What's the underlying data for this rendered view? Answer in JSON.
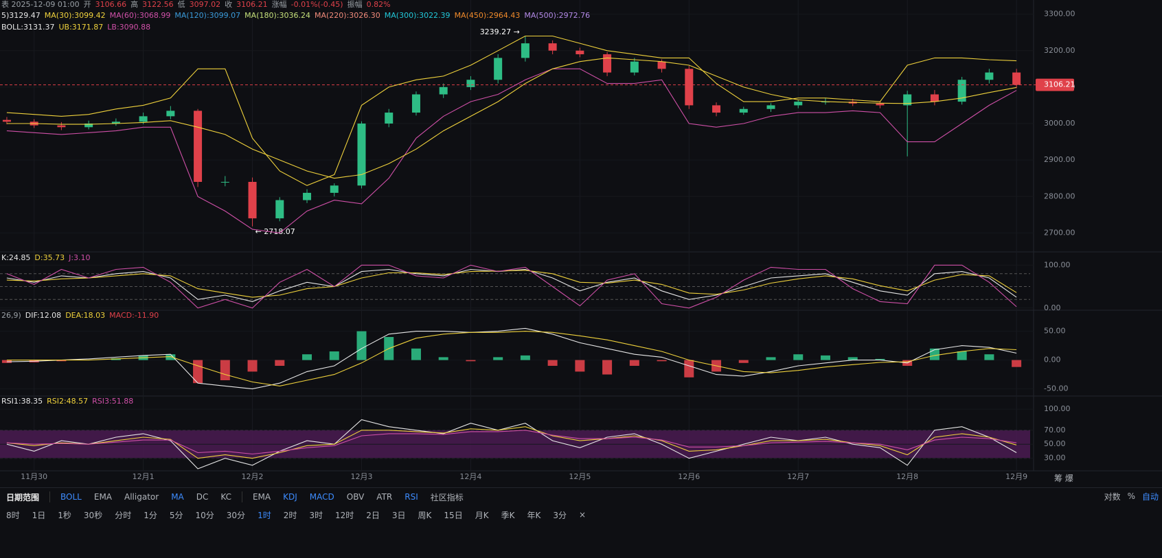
{
  "chart_data": [
    {
      "type": "candlestick",
      "header": [
        {
          "label": "表 2025-12-09 01:00",
          "color": "#9aa0a6"
        },
        {
          "label": "开",
          "color": "#9aa0a6"
        },
        {
          "label": "3106.66",
          "color": "#e0414a"
        },
        {
          "label": "高",
          "color": "#9aa0a6"
        },
        {
          "label": "3122.56",
          "color": "#e0414a"
        },
        {
          "label": "低",
          "color": "#9aa0a6"
        },
        {
          "label": "3097.02",
          "color": "#e0414a"
        },
        {
          "label": "收",
          "color": "#9aa0a6"
        },
        {
          "label": "3106.21",
          "color": "#e0414a"
        },
        {
          "label": "涨幅",
          "color": "#9aa0a6"
        },
        {
          "label": "-0.01%(-0.45)",
          "color": "#e0414a"
        },
        {
          "label": "振幅",
          "color": "#9aa0a6"
        },
        {
          "label": "0.82%",
          "color": "#e0414a"
        }
      ],
      "legend": [
        {
          "label": "5)3129.47",
          "color": "#e8e8e8"
        },
        {
          "label": "MA(30):3099.42",
          "color": "#f0d23c"
        },
        {
          "label": "MA(60):3068.99",
          "color": "#d050a8"
        },
        {
          "label": "MA(120):3099.07",
          "color": "#3a9ad9"
        },
        {
          "label": "MA(180):3036.24",
          "color": "#c5e07a"
        },
        {
          "label": "MA(220):3026.30",
          "color": "#f08a7a"
        },
        {
          "label": "MA(300):3022.39",
          "color": "#21c7d8"
        },
        {
          "label": "MA(450):2964.43",
          "color": "#f08a2a"
        },
        {
          "label": "MA(500):2972.76",
          "color": "#b48ae8"
        }
      ],
      "legend2": [
        {
          "label": "BOLL:3131.37",
          "color": "#e8e8e8"
        },
        {
          "label": "UB:3171.87",
          "color": "#f0d23c"
        },
        {
          "label": "LB:3090.88",
          "color": "#d050a8"
        }
      ],
      "up_color": "#2ebd85",
      "down_color": "#e0414a",
      "open": [
        3010,
        3005,
        2995,
        2990,
        3000,
        3005,
        3020,
        3035,
        2840,
        2840,
        2740,
        2790,
        2810,
        2830,
        3000,
        3030,
        3080,
        3100,
        3120,
        3180,
        3220,
        3200,
        3190,
        3140,
        3170,
        3150,
        3050,
        3030,
        3040,
        3050,
        3060,
        3060,
        3055,
        3050,
        3080,
        3060,
        3120,
        3140
      ],
      "high": [
        3018,
        3012,
        3004,
        3008,
        3014,
        3030,
        3048,
        3040,
        2856,
        2852,
        2798,
        2820,
        2836,
        3006,
        3040,
        3088,
        3110,
        3130,
        3190,
        3239,
        3228,
        3208,
        3196,
        3180,
        3176,
        3158,
        3058,
        3046,
        3056,
        3066,
        3070,
        3068,
        3062,
        3090,
        3092,
        3128,
        3150,
        3150
      ],
      "low": [
        2998,
        2988,
        2982,
        2984,
        2994,
        2998,
        3012,
        2826,
        2828,
        2718,
        2732,
        2782,
        2800,
        2822,
        2990,
        3022,
        3070,
        3092,
        3110,
        3170,
        3190,
        3182,
        3130,
        3132,
        3140,
        3040,
        3020,
        3024,
        3032,
        3042,
        3052,
        3048,
        3042,
        2910,
        3050,
        3052,
        3110,
        3097
      ],
      "close": [
        3005,
        2995,
        2990,
        3000,
        3005,
        3020,
        3035,
        2840,
        2840,
        2740,
        2790,
        2810,
        2830,
        3000,
        3030,
        3080,
        3100,
        3120,
        3180,
        3220,
        3200,
        3190,
        3140,
        3170,
        3150,
        3050,
        3030,
        3040,
        3050,
        3060,
        3060,
        3055,
        3050,
        3080,
        3060,
        3120,
        3140,
        3106
      ],
      "lines": [
        {
          "color": "#f0d23c",
          "values": [
            3030,
            3025,
            3020,
            3025,
            3040,
            3050,
            3070,
            3150,
            3150,
            2960,
            2870,
            2830,
            2860,
            3050,
            3100,
            3120,
            3130,
            3160,
            3200,
            3240,
            3240,
            3220,
            3200,
            3190,
            3180,
            3180,
            3110,
            3060,
            3060,
            3070,
            3070,
            3065,
            3060,
            3160,
            3180,
            3180,
            3175,
            3172
          ]
        },
        {
          "color": "#d050a8",
          "values": [
            2980,
            2975,
            2970,
            2975,
            2980,
            2990,
            2990,
            2800,
            2760,
            2710,
            2700,
            2760,
            2790,
            2780,
            2850,
            2960,
            3020,
            3060,
            3080,
            3120,
            3150,
            3150,
            3110,
            3110,
            3120,
            3000,
            2990,
            3000,
            3020,
            3030,
            3030,
            3035,
            3030,
            2950,
            2950,
            3000,
            3050,
            3091
          ]
        },
        {
          "color": "#f0d23c",
          "values": [
            3000,
            3000,
            2998,
            2998,
            3000,
            3003,
            3008,
            2990,
            2970,
            2930,
            2900,
            2870,
            2850,
            2860,
            2890,
            2930,
            2980,
            3020,
            3060,
            3110,
            3150,
            3170,
            3180,
            3175,
            3170,
            3160,
            3130,
            3100,
            3080,
            3065,
            3060,
            3058,
            3056,
            3055,
            3060,
            3070,
            3085,
            3099
          ]
        }
      ],
      "annotations": [
        {
          "text": "3239.27 →",
          "index": 19
        },
        {
          "text": "← 2718.07",
          "index": 9
        }
      ],
      "last": {
        "value": 3106.21,
        "label": "3106.21"
      },
      "ylim": [
        2680,
        3320
      ],
      "yticks": [
        {
          "value": 2700,
          "label": "2700.00"
        },
        {
          "value": 2800,
          "label": "2800.00"
        },
        {
          "value": 2900,
          "label": "2900.00"
        },
        {
          "value": 3000,
          "label": "3000.00"
        },
        {
          "value": 3100,
          "label": "3100.00"
        },
        {
          "value": 3200,
          "label": "3200.00"
        },
        {
          "value": 3300,
          "label": "3300.00"
        }
      ],
      "xlim": [
        -0.25,
        37.5
      ]
    },
    {
      "type": "line",
      "legend": [
        {
          "label": "K:24.85",
          "color": "#e8e8e8"
        },
        {
          "label": "D:35.73",
          "color": "#f0d23c"
        },
        {
          "label": "J:3.10",
          "color": "#d050a8"
        }
      ],
      "lines": [
        {
          "color": "#e8e8e8",
          "values": [
            70,
            60,
            75,
            70,
            80,
            85,
            70,
            20,
            30,
            15,
            40,
            60,
            50,
            85,
            90,
            80,
            75,
            90,
            85,
            90,
            70,
            40,
            60,
            70,
            40,
            20,
            30,
            50,
            70,
            75,
            80,
            60,
            40,
            30,
            80,
            85,
            70,
            25
          ]
        },
        {
          "color": "#f0d23c",
          "values": [
            65,
            63,
            68,
            70,
            75,
            80,
            75,
            45,
            35,
            25,
            30,
            45,
            50,
            70,
            82,
            82,
            78,
            85,
            86,
            88,
            80,
            60,
            58,
            65,
            55,
            35,
            32,
            42,
            58,
            68,
            75,
            68,
            52,
            40,
            65,
            78,
            75,
            36
          ]
        },
        {
          "color": "#d050a8",
          "values": [
            80,
            55,
            90,
            70,
            90,
            95,
            60,
            0,
            20,
            0,
            60,
            90,
            50,
            100,
            100,
            75,
            70,
            100,
            85,
            95,
            50,
            5,
            65,
            80,
            10,
            0,
            25,
            65,
            95,
            90,
            90,
            45,
            15,
            10,
            100,
            100,
            60,
            3
          ]
        }
      ],
      "guides": [
        20,
        50,
        80
      ],
      "ylim": [
        -2,
        110
      ],
      "yticks": [
        {
          "value": 0,
          "label": "0.00"
        },
        {
          "value": 100,
          "label": "100.00"
        }
      ],
      "xlim": [
        -0.25,
        37.5
      ]
    },
    {
      "type": "macd",
      "legend": [
        {
          "label": "26,9)",
          "color": "#9aa0a6"
        },
        {
          "label": "DIF:12.08",
          "color": "#e8e8e8"
        },
        {
          "label": "DEA:18.03",
          "color": "#f0d23c"
        },
        {
          "label": "MACD:-11.90",
          "color": "#e0414a"
        }
      ],
      "bars": {
        "up_color": "#2ebd85",
        "down_color": "#e0414a",
        "values": [
          -5,
          -4,
          -2,
          0,
          3,
          8,
          10,
          -40,
          -35,
          -20,
          -10,
          10,
          15,
          50,
          40,
          20,
          5,
          -2,
          5,
          8,
          -10,
          -20,
          -25,
          -10,
          -2,
          -30,
          -20,
          -5,
          5,
          10,
          8,
          5,
          2,
          -10,
          20,
          15,
          10,
          -12
        ]
      },
      "lines": [
        {
          "color": "#e8e8e8",
          "values": [
            -3,
            -2,
            0,
            2,
            5,
            8,
            10,
            -40,
            -45,
            -50,
            -40,
            -20,
            -10,
            20,
            45,
            50,
            50,
            48,
            50,
            55,
            45,
            30,
            20,
            10,
            5,
            -10,
            -25,
            -28,
            -20,
            -10,
            -5,
            0,
            0,
            -5,
            18,
            25,
            22,
            12
          ]
        },
        {
          "color": "#f0d23c",
          "values": [
            0,
            0,
            0,
            0,
            2,
            4,
            6,
            -10,
            -25,
            -38,
            -45,
            -35,
            -25,
            -5,
            20,
            38,
            45,
            48,
            48,
            50,
            48,
            42,
            35,
            25,
            15,
            0,
            -10,
            -20,
            -22,
            -18,
            -12,
            -8,
            -4,
            -3,
            8,
            15,
            20,
            18
          ]
        }
      ],
      "ylim": [
        -60,
        65
      ],
      "yticks": [
        {
          "value": -50,
          "label": "-50.00"
        },
        {
          "value": 0,
          "label": "0.00"
        },
        {
          "value": 50,
          "label": "50.00"
        }
      ],
      "xlim": [
        -0.25,
        37.5
      ]
    },
    {
      "type": "line",
      "legend": [
        {
          "label": "RSI1:38.35",
          "color": "#e8e8e8"
        },
        {
          "label": "RSI2:48.57",
          "color": "#f0d23c"
        },
        {
          "label": "RSI3:51.88",
          "color": "#d050a8"
        }
      ],
      "band": [
        30,
        70
      ],
      "lines": [
        {
          "color": "#e8e8e8",
          "values": [
            50,
            40,
            55,
            50,
            60,
            65,
            55,
            15,
            30,
            20,
            40,
            55,
            50,
            85,
            75,
            70,
            65,
            80,
            70,
            80,
            55,
            45,
            60,
            65,
            50,
            30,
            40,
            50,
            60,
            55,
            60,
            50,
            45,
            20,
            70,
            75,
            60,
            38
          ]
        },
        {
          "color": "#f0d23c",
          "values": [
            52,
            48,
            52,
            50,
            55,
            60,
            57,
            30,
            35,
            30,
            38,
            48,
            50,
            70,
            70,
            68,
            66,
            72,
            70,
            75,
            62,
            55,
            58,
            62,
            55,
            40,
            42,
            48,
            55,
            55,
            57,
            52,
            48,
            35,
            60,
            65,
            60,
            49
          ]
        },
        {
          "color": "#d050a8",
          "values": [
            52,
            50,
            51,
            50,
            53,
            56,
            56,
            38,
            40,
            36,
            40,
            45,
            48,
            62,
            65,
            65,
            64,
            68,
            68,
            70,
            63,
            58,
            58,
            60,
            56,
            46,
            46,
            48,
            52,
            53,
            54,
            52,
            50,
            42,
            56,
            60,
            58,
            52
          ]
        }
      ],
      "ylim": [
        14,
        108
      ],
      "yticks": [
        {
          "value": 30,
          "label": "30.00"
        },
        {
          "value": 50,
          "label": "50.00"
        },
        {
          "value": 70,
          "label": "70.00"
        },
        {
          "value": 100,
          "label": "100.00"
        }
      ],
      "xlim": [
        -0.25,
        37.5
      ],
      "xticks": [
        {
          "value": 1,
          "label": "11月30"
        },
        {
          "value": 5,
          "label": "12月1"
        },
        {
          "value": 9,
          "label": "12月2"
        },
        {
          "value": 13,
          "label": "12月3"
        },
        {
          "value": 17,
          "label": "12月4"
        },
        {
          "value": 21,
          "label": "12月5"
        },
        {
          "value": 25,
          "label": "12月6"
        },
        {
          "value": 29,
          "label": "12月7"
        },
        {
          "value": 33,
          "label": "12月8"
        },
        {
          "value": 37,
          "label": "12月9"
        }
      ]
    }
  ],
  "toolbar": {
    "range": "日期范围",
    "main": [
      {
        "label": "BOLL",
        "active": true
      },
      {
        "label": "EMA",
        "active": false
      },
      {
        "label": "Alligator",
        "active": false
      },
      {
        "label": "MA",
        "active": true
      },
      {
        "label": "DC",
        "active": false
      },
      {
        "label": "KC",
        "active": false
      }
    ],
    "sub": [
      {
        "label": "EMA",
        "active": false
      },
      {
        "label": "KDJ",
        "active": true
      },
      {
        "label": "MACD",
        "active": true
      },
      {
        "label": "OBV",
        "active": false
      },
      {
        "label": "ATR",
        "active": false
      },
      {
        "label": "RSI",
        "active": true
      }
    ],
    "community": "社区指标",
    "right": [
      {
        "label": "对数",
        "active": false
      },
      {
        "label": "%",
        "active": false
      },
      {
        "label": "自动",
        "active": true
      }
    ],
    "corner": "筹 爆",
    "periods": [
      {
        "label": "8时",
        "active": false
      },
      {
        "label": "1日",
        "active": false
      },
      {
        "label": "1秒",
        "active": false
      },
      {
        "label": "30秒",
        "active": false
      },
      {
        "label": "分时",
        "active": false
      },
      {
        "label": "1分",
        "active": false
      },
      {
        "label": "5分",
        "active": false
      },
      {
        "label": "10分",
        "active": false
      },
      {
        "label": "30分",
        "active": false
      },
      {
        "label": "1时",
        "active": true
      },
      {
        "label": "2时",
        "active": false
      },
      {
        "label": "3时",
        "active": false
      },
      {
        "label": "12时",
        "active": false
      },
      {
        "label": "2日",
        "active": false
      },
      {
        "label": "3日",
        "active": false
      },
      {
        "label": "周K",
        "active": false
      },
      {
        "label": "15日",
        "active": false
      },
      {
        "label": "月K",
        "active": false
      },
      {
        "label": "季K",
        "active": false
      },
      {
        "label": "年K",
        "active": false
      },
      {
        "label": "3分",
        "active": false
      },
      {
        "label": "×",
        "active": false
      }
    ]
  }
}
